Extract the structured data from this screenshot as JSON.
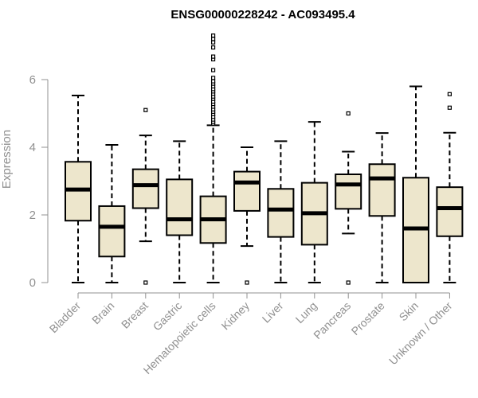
{
  "colors": {
    "box_fill": "#ede6cc",
    "stroke": "#000000",
    "axis": "#909090",
    "label": "#909090"
  },
  "chart_data": {
    "type": "boxplot",
    "title": "ENSG00000228242 - AC093495.4",
    "ylabel": "Expression",
    "xlabel": "",
    "ylim": [
      0,
      7.5
    ],
    "yticks": [
      0,
      2,
      4,
      6
    ],
    "grid": false,
    "categories": [
      "Bladder",
      "Brain",
      "Breast",
      "Gastric",
      "Hematopoietic cells",
      "Kidney",
      "Liver",
      "Lung",
      "Pancreas",
      "Prostate",
      "Skin",
      "Unknown / Other"
    ],
    "boxes": [
      {
        "category": "Bladder",
        "whisker_low": 0,
        "q1": 1.83,
        "median": 2.75,
        "q3": 3.57,
        "whisker_high": 5.53,
        "outliers": []
      },
      {
        "category": "Brain",
        "whisker_low": 0,
        "q1": 0.77,
        "median": 1.65,
        "q3": 2.26,
        "whisker_high": 4.07,
        "outliers": []
      },
      {
        "category": "Breast",
        "whisker_low": 1.22,
        "q1": 2.2,
        "median": 2.88,
        "q3": 3.35,
        "whisker_high": 4.35,
        "outliers": [
          0,
          5.1
        ]
      },
      {
        "category": "Gastric",
        "whisker_low": 0,
        "q1": 1.4,
        "median": 1.87,
        "q3": 3.05,
        "whisker_high": 4.18,
        "outliers": []
      },
      {
        "category": "Hematopoietic cells",
        "whisker_low": 0,
        "q1": 1.17,
        "median": 1.87,
        "q3": 2.55,
        "whisker_high": 4.65,
        "outliers": [
          4.7,
          4.75,
          4.82,
          4.9,
          4.98,
          5.05,
          5.12,
          5.2,
          5.28,
          5.35,
          5.43,
          5.5,
          5.58,
          5.65,
          5.72,
          5.8,
          5.88,
          5.95,
          6.05,
          6.28,
          6.6,
          6.68,
          6.95,
          7.1,
          7.2,
          7.3
        ]
      },
      {
        "category": "Kidney",
        "whisker_low": 1.08,
        "q1": 2.12,
        "median": 2.96,
        "q3": 3.28,
        "whisker_high": 4.0,
        "outliers": [
          0
        ]
      },
      {
        "category": "Liver",
        "whisker_low": 0,
        "q1": 1.35,
        "median": 2.16,
        "q3": 2.77,
        "whisker_high": 4.18,
        "outliers": []
      },
      {
        "category": "Lung",
        "whisker_low": 0,
        "q1": 1.12,
        "median": 2.05,
        "q3": 2.95,
        "whisker_high": 4.75,
        "outliers": []
      },
      {
        "category": "Pancreas",
        "whisker_low": 1.45,
        "q1": 2.18,
        "median": 2.9,
        "q3": 3.2,
        "whisker_high": 3.87,
        "outliers": [
          0,
          5.0
        ]
      },
      {
        "category": "Prostate",
        "whisker_low": 0,
        "q1": 1.97,
        "median": 3.08,
        "q3": 3.5,
        "whisker_high": 4.42,
        "outliers": []
      },
      {
        "category": "Skin",
        "whisker_low": 0,
        "q1": 0,
        "median": 1.6,
        "q3": 3.1,
        "whisker_high": 5.8,
        "outliers": []
      },
      {
        "category": "Unknown / Other",
        "whisker_low": 0,
        "q1": 1.37,
        "median": 2.2,
        "q3": 2.82,
        "whisker_high": 4.43,
        "outliers": [
          5.17,
          5.57
        ]
      }
    ]
  }
}
